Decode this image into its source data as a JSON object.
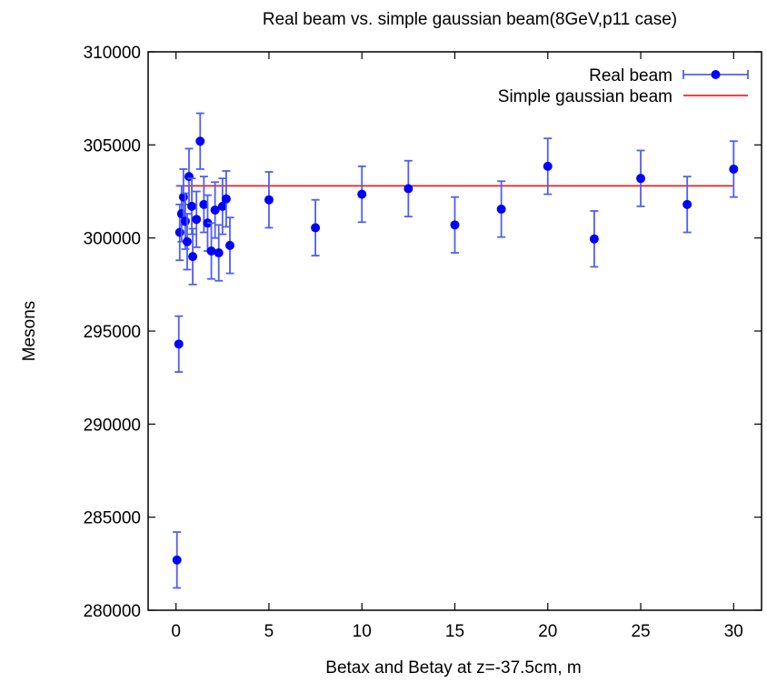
{
  "chart_data": {
    "type": "scatter",
    "title": "Real beam vs. simple gaussian beam(8GeV,p11 case)",
    "xlabel": "Betax and Betay at z=-37.5cm, m",
    "ylabel": "Mesons",
    "xlim": [
      -1.5,
      31.5
    ],
    "ylim": [
      280000,
      310000
    ],
    "xticks": [
      0,
      5,
      10,
      15,
      20,
      25,
      30
    ],
    "yticks": [
      280000,
      285000,
      290000,
      295000,
      300000,
      305000,
      310000
    ],
    "xtick_labels": [
      "0",
      "5",
      "10",
      "15",
      "20",
      "25",
      "30"
    ],
    "ytick_labels": [
      "280000",
      "285000",
      "290000",
      "295000",
      "300000",
      "305000",
      "310000"
    ],
    "grid": false,
    "legend": "top-right",
    "series": [
      {
        "name": "Real beam",
        "color": "#0000ff",
        "errorbar_color": "#4f5ff0",
        "points": [
          {
            "x": 0.05,
            "y": 282700,
            "err": 1500
          },
          {
            "x": 0.15,
            "y": 294300,
            "err": 1500
          },
          {
            "x": 0.2,
            "y": 300300,
            "err": 1500
          },
          {
            "x": 0.3,
            "y": 301300,
            "err": 1500
          },
          {
            "x": 0.4,
            "y": 302200,
            "err": 1500
          },
          {
            "x": 0.5,
            "y": 300900,
            "err": 1500
          },
          {
            "x": 0.6,
            "y": 299800,
            "err": 1500
          },
          {
            "x": 0.7,
            "y": 303300,
            "err": 1500
          },
          {
            "x": 0.85,
            "y": 301700,
            "err": 1500
          },
          {
            "x": 0.9,
            "y": 299000,
            "err": 1500
          },
          {
            "x": 1.1,
            "y": 301000,
            "err": 1500
          },
          {
            "x": 1.3,
            "y": 305200,
            "err": 1500
          },
          {
            "x": 1.5,
            "y": 301800,
            "err": 1500
          },
          {
            "x": 1.7,
            "y": 300800,
            "err": 1500
          },
          {
            "x": 1.9,
            "y": 299300,
            "err": 1500
          },
          {
            "x": 2.1,
            "y": 301500,
            "err": 1500
          },
          {
            "x": 2.3,
            "y": 299200,
            "err": 1500
          },
          {
            "x": 2.5,
            "y": 301700,
            "err": 1500
          },
          {
            "x": 2.7,
            "y": 302100,
            "err": 1500
          },
          {
            "x": 2.9,
            "y": 299600,
            "err": 1500
          },
          {
            "x": 5,
            "y": 302050,
            "err": 1500
          },
          {
            "x": 7.5,
            "y": 300550,
            "err": 1500
          },
          {
            "x": 10,
            "y": 302350,
            "err": 1500
          },
          {
            "x": 12.5,
            "y": 302650,
            "err": 1500
          },
          {
            "x": 15,
            "y": 300700,
            "err": 1500
          },
          {
            "x": 17.5,
            "y": 301550,
            "err": 1500
          },
          {
            "x": 20,
            "y": 303850,
            "err": 1500
          },
          {
            "x": 22.5,
            "y": 299950,
            "err": 1500
          },
          {
            "x": 25,
            "y": 303200,
            "err": 1500
          },
          {
            "x": 27.5,
            "y": 301800,
            "err": 1500
          },
          {
            "x": 30,
            "y": 303700,
            "err": 1500
          }
        ]
      },
      {
        "name": "Simple gaussian beam",
        "color": "#ff0000",
        "type": "line",
        "x": [
          0,
          30
        ],
        "y": [
          302800,
          302800
        ]
      }
    ]
  }
}
